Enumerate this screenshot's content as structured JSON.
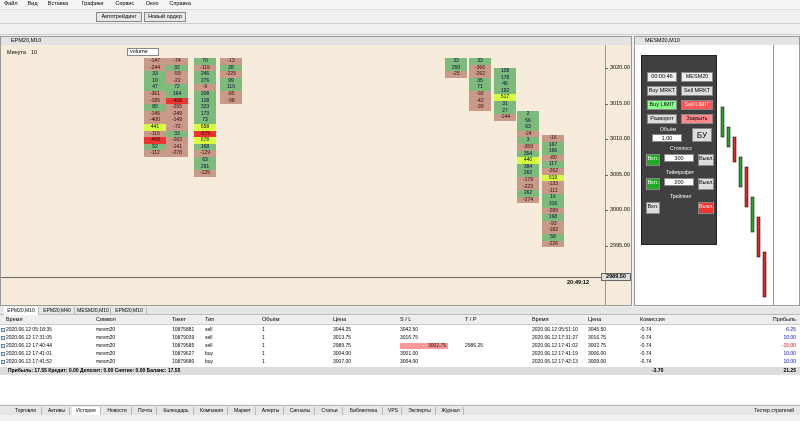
{
  "menu": [
    "Файл",
    "Вид",
    "Вставка",
    "Графики",
    "Сервис",
    "Окно",
    "Справка"
  ],
  "toolbar": {
    "autotrading": "Автотрейдинг",
    "new_order": "Новый ордер"
  },
  "chart_left": {
    "title": "EPM20,M10",
    "period_label": "Минута",
    "period_value": 10,
    "indicator": "volume",
    "prices": [
      "3020.00",
      "3015.00",
      "3010.00",
      "3005.00",
      "3000.00",
      "2995.00"
    ],
    "current_price": "2989.50",
    "time": "20:49:12",
    "clusters": [
      [
        -147,
        -244,
        33,
        10,
        47,
        -361,
        -185,
        80,
        -145,
        -400,
        441,
        -115,
        -468,
        52,
        -112
      ],
      [
        -74,
        32,
        -59,
        -22,
        72,
        164,
        -408,
        -255,
        -249,
        -149,
        -72,
        33,
        -263,
        -141,
        -278
      ],
      [
        70,
        -119,
        246,
        276,
        -9,
        208,
        128,
        323,
        173,
        73,
        658,
        -579,
        678,
        168,
        -129,
        63,
        291,
        -125
      ],
      [
        -13,
        28,
        -225,
        99,
        110,
        -85,
        -98
      ],
      [
        33,
        250,
        -25
      ],
      [
        33,
        -366,
        -262,
        35,
        71,
        -92,
        -42,
        -39
      ],
      [
        128,
        178,
        45,
        192,
        517,
        31,
        27,
        -144
      ],
      [
        2,
        56,
        63,
        -24,
        3,
        -359,
        354,
        440,
        384,
        262,
        -179,
        -223,
        262,
        -274
      ],
      [
        -16,
        167,
        166,
        -80,
        117,
        -262,
        519,
        -133,
        -111,
        16,
        316,
        -289,
        168,
        -93,
        -182,
        58,
        -226
      ]
    ]
  },
  "chart_right": {
    "title": "MESM20,M10",
    "timer": "00:00:46",
    "symbol": "MESM20",
    "buy_market": "Buy MRKT",
    "sell_market": "Sell MRKT",
    "buy_limit": "Buy LIMIT",
    "sell_limit": "Sell LIMIT",
    "reverse": "Разворот",
    "close": "Закрыть",
    "volume_label": "Объём",
    "volume": "1.00",
    "breakeven": "БУ",
    "stoploss_label": "Стоплосс",
    "stoploss": "300",
    "takeprofit_label": "Тейкпрофит",
    "takeprofit": "200",
    "trailing_label": "Трейлинг",
    "on": "Вкл.",
    "off": "Выкл."
  },
  "chart_tabs": [
    "EPM20,M10",
    "EPM20,M40",
    "MESM20,M10",
    "EPM20,M10"
  ],
  "table": {
    "headers": [
      "Время",
      "Символ",
      "Тикет",
      "Тип",
      "Объём",
      "Цена",
      "S / L",
      "T / P",
      "Время",
      "Цена",
      "Комиссия",
      "Прибыль"
    ],
    "rows": [
      [
        "2020.06.12 05:18:35",
        "mesm20",
        "10875881",
        "sell",
        "1",
        "3044.25",
        "3042.50",
        "",
        "2020.06.12 05:51:10",
        "3045.50",
        "-0.74",
        "6.25"
      ],
      [
        "2020.06.12 17:31:05",
        "mesm20",
        "10879039",
        "sell",
        "1",
        "3013.75",
        "3016.75",
        "",
        "2020.06.12 17:31:27",
        "3016.75",
        "-0.74",
        "10.00"
      ],
      [
        "2020.06.12 17:40:44",
        "mesm20",
        "10879585",
        "sell",
        "1",
        "2989.75",
        "3002.75",
        "2986.25",
        "2020.06.12 17:41:02",
        "3002.75",
        "-0.74",
        "-15.00"
      ],
      [
        "2020.06.12 17:41:01",
        "mesm20",
        "10879627",
        "buy",
        "1",
        "3004.00",
        "3001.00",
        "",
        "2020.06.12 17:41:19",
        "3006.00",
        "-0.74",
        "10.00"
      ],
      [
        "2020.06.12 17:41:52",
        "mesm20",
        "10879680",
        "buy",
        "1",
        "3007.00",
        "3004.00",
        "",
        "2020.06.12 17:42:13",
        "3009.00",
        "-0.74",
        "10.00"
      ]
    ],
    "summary": {
      "text": "Прибыль: 17.55  Кредит: 0.00  Депозит: 0.00  Снятие: 0.00  Баланс: 17.55",
      "commission": "-3.70",
      "profit": "21.25"
    }
  },
  "bottom_tabs": [
    "Торговля",
    "Активы",
    "История",
    "Новости",
    "Почта",
    "Календарь",
    "Компания",
    "Маркет",
    "Алерты",
    "Сигналы",
    "Статьи",
    "Библиотека",
    "VPS",
    "Эксперты",
    "Журнал"
  ],
  "tester": "Тестер стратегий"
}
